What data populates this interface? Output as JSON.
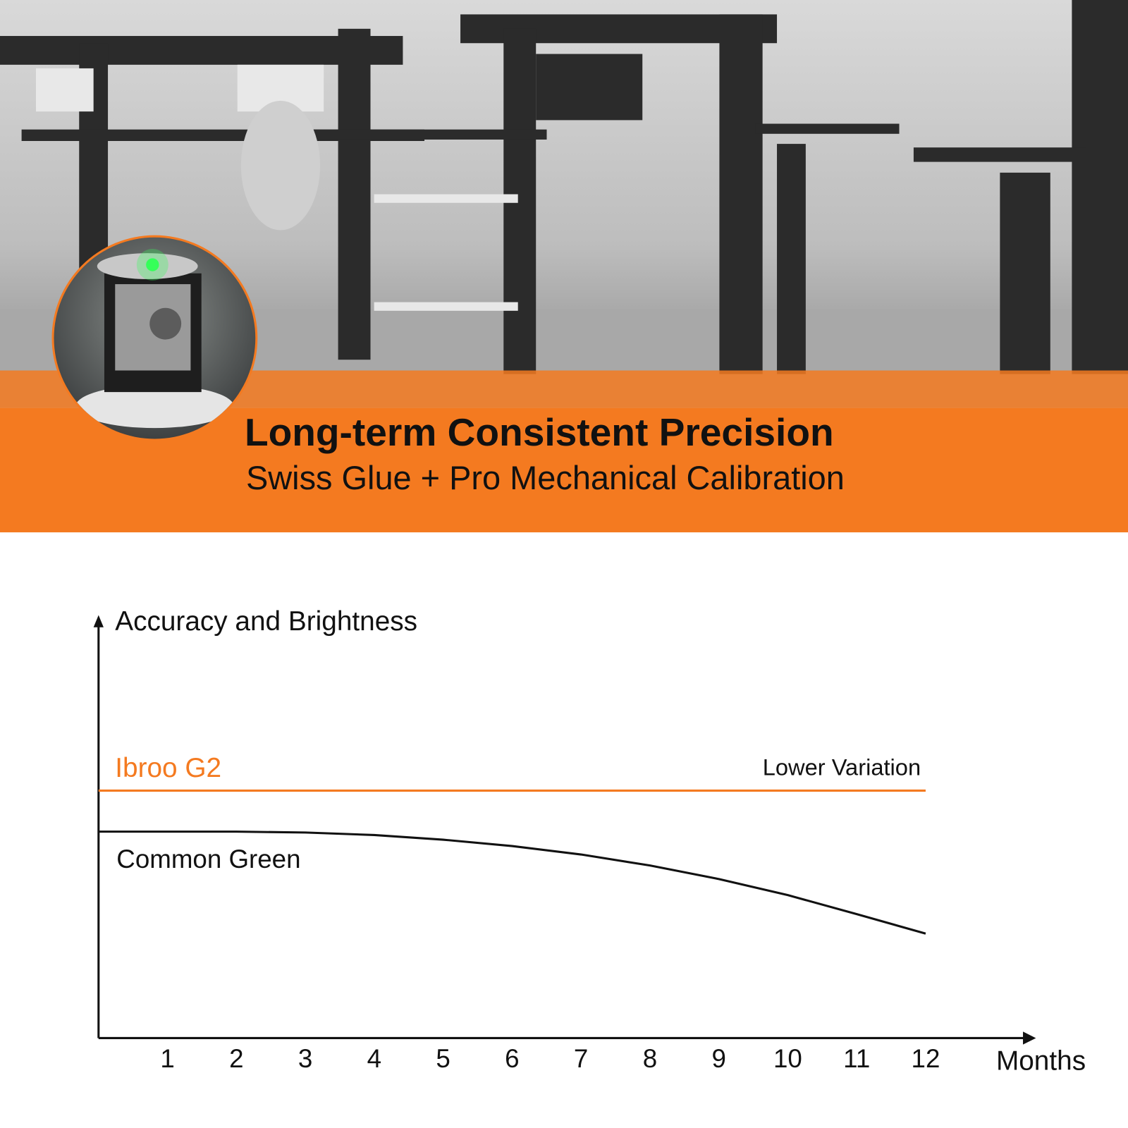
{
  "header": {
    "title": "Long-term Consistent Precision",
    "subtitle": "Swiss Glue + Pro Mechanical Calibration"
  },
  "chart_data": {
    "type": "line",
    "y_label": "Accuracy and Brightness",
    "x_label": "Months",
    "annotation": "Lower Variation",
    "x": [
      0,
      1,
      2,
      3,
      4,
      5,
      6,
      7,
      8,
      9,
      10,
      11,
      12
    ],
    "series": [
      {
        "name": "Ibroo G2",
        "color": "#f47a20",
        "values": [
          58.5,
          58.5,
          58.5,
          58.5,
          58.5,
          58.5,
          58.5,
          58.5,
          58.5,
          58.5,
          58.5,
          58.5,
          58.5
        ]
      },
      {
        "name": "Common Green",
        "color": "#111111",
        "values": [
          48.8,
          48.8,
          48.8,
          48.6,
          48,
          46.9,
          45.4,
          43.4,
          40.8,
          37.6,
          33.8,
          29.3,
          24.7
        ]
      }
    ],
    "xlim": [
      0,
      13.6
    ],
    "ylim": [
      0,
      100
    ],
    "xticks": [
      1,
      2,
      3,
      4,
      5,
      6,
      7,
      8,
      9,
      10,
      11,
      12
    ]
  }
}
